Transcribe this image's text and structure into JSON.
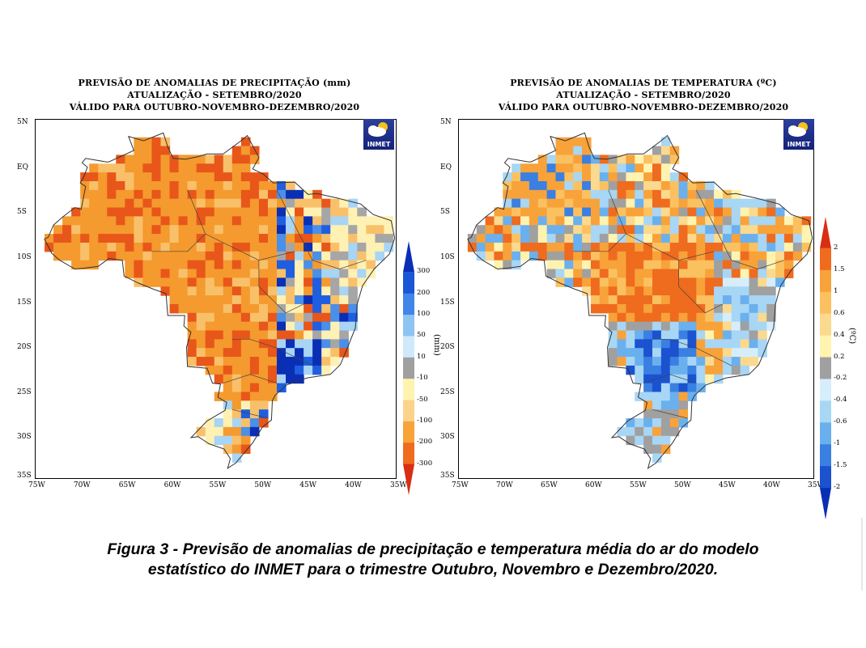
{
  "left_map": {
    "title_lines": [
      "PREVISÃO DE ANOMALIAS DE PRECIPITAÇÃO (mm)",
      "ATUALIZAÇÃO - SETEMBRO/2020",
      "VÁLIDO PARA OUTUBRO-NOVEMBRO-DEZEMBRO/2020"
    ],
    "unit": "(mm)",
    "colorbar": {
      "labels": [
        "300",
        "200",
        "100",
        "50",
        "10",
        "-10",
        "-50",
        "-100",
        "-200",
        "-300"
      ],
      "colors": [
        "#0a2fb5",
        "#1a56d6",
        "#3f86e8",
        "#8ec4f2",
        "#cfe9fa",
        "#a0a0a0",
        "#fff3b0",
        "#fbd38a",
        "#f8a23a",
        "#ef6b1e",
        "#d92e12"
      ]
    },
    "palette_key": {
      "strong_wet": "#0a2fb5",
      "wet": "#1f5ee0",
      "mod_wet": "#4a8fe8",
      "light_wet": "#a8d4f5",
      "neutral": "#a6a6a6",
      "light_dry": "#fff1b3",
      "dry": "#f9c06a",
      "mod_dry": "#f59a2e",
      "strong_dry": "#e8561a"
    }
  },
  "right_map": {
    "title_lines": [
      "PREVISÃO DE ANOMALIAS DE TEMPERATURA (ºC)",
      "ATUALIZAÇÃO - SETEMBRO/2020",
      "VÁLIDO PARA OUTUBRO-NOVEMBRO-DEZEMBRO/2020"
    ],
    "unit": "(ºC)",
    "colorbar": {
      "labels": [
        "2",
        "1.5",
        "1",
        "0.6",
        "0.4",
        "0.2",
        "-0.2",
        "-0.4",
        "-0.6",
        "-1",
        "-1.5",
        "-2"
      ],
      "colors": [
        "#d92e12",
        "#ef6b1e",
        "#f8a23a",
        "#fbc160",
        "#fbd98e",
        "#fff3b0",
        "#a0a0a0",
        "#d6eefb",
        "#a8d6f5",
        "#6ab0ee",
        "#3a7fe2",
        "#1a52d0",
        "#0a2fb5"
      ]
    }
  },
  "axes": {
    "lat_labels": [
      "5N",
      "EQ",
      "5S",
      "10S",
      "15S",
      "20S",
      "25S",
      "30S",
      "35S"
    ],
    "lon_labels": [
      "75W",
      "70W",
      "65W",
      "60W",
      "55W",
      "50W",
      "45W",
      "40W",
      "35W"
    ]
  },
  "logo": {
    "text": "INMET"
  },
  "caption_lines": [
    "Figura 3 - Previsão de anomalias de precipitação e temperatura média do ar do modelo",
    "estatístico do INMET para o trimestre Outubro, Novembro e Dezembro/2020."
  ]
}
